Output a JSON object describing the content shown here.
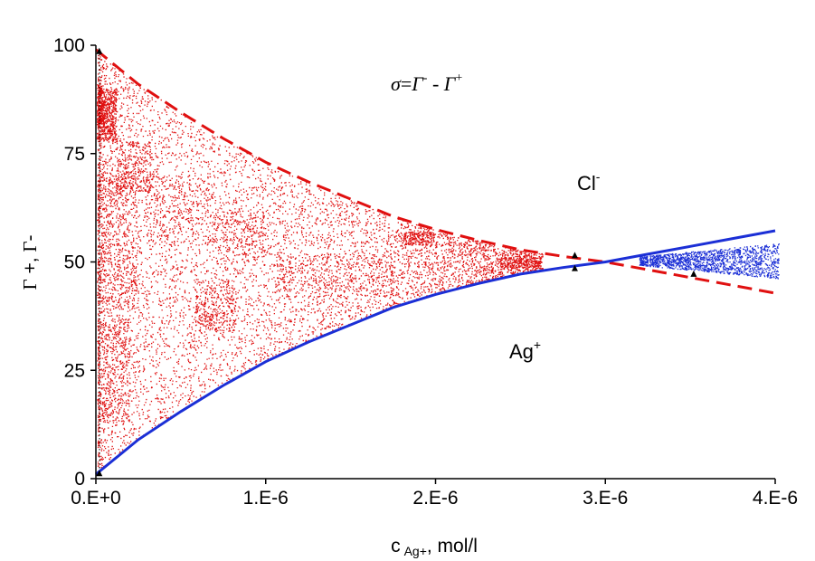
{
  "chart_data": {
    "type": "scatter",
    "title": "",
    "xlabel_main": "c",
    "xlabel_sub": "Ag+",
    "xlabel_tail": ", mol/l",
    "ylabel_parts": [
      "Γ",
      " +, ",
      "Γ",
      "-"
    ],
    "xlim": [
      0,
      4e-06
    ],
    "ylim": [
      0,
      100
    ],
    "x_ticks": [
      {
        "value": 0,
        "label": "0.E+0"
      },
      {
        "value": 1e-06,
        "label": "1.E-6"
      },
      {
        "value": 2e-06,
        "label": "2.E-6"
      },
      {
        "value": 3e-06,
        "label": "3.E-6"
      },
      {
        "value": 4e-06,
        "label": "4.E-6"
      }
    ],
    "y_ticks": [
      {
        "value": 0,
        "label": "0"
      },
      {
        "value": 25,
        "label": "25"
      },
      {
        "value": 50,
        "label": "50"
      },
      {
        "value": 75,
        "label": "75"
      },
      {
        "value": 100,
        "label": "100"
      }
    ],
    "grid": false,
    "colors": {
      "cl": "#e01010",
      "ag": "#1b2fd6",
      "axis": "#000000"
    },
    "series": [
      {
        "name": "Cl-",
        "style": "dashed",
        "color": "#e01010",
        "x": [
          0,
          2.5e-07,
          5e-07,
          7.5e-07,
          1e-06,
          1.25e-06,
          1.5e-06,
          1.75e-06,
          2e-06,
          2.25e-06,
          2.5e-06,
          2.75e-06,
          3e-06,
          3.25e-06,
          3.5e-06,
          3.75e-06,
          4e-06
        ],
        "y": [
          99,
          91,
          84.5,
          78.5,
          73,
          68.5,
          64.5,
          60.5,
          57.5,
          55,
          52.8,
          51.3,
          50,
          48.2,
          46.4,
          44.6,
          42.8
        ]
      },
      {
        "name": "Ag+",
        "style": "solid",
        "color": "#1b2fd6",
        "x": [
          0,
          2.5e-07,
          5e-07,
          7.5e-07,
          1e-06,
          1.25e-06,
          1.5e-06,
          1.75e-06,
          2e-06,
          2.25e-06,
          2.5e-06,
          2.75e-06,
          3e-06,
          3.25e-06,
          3.5e-06,
          3.75e-06,
          4e-06
        ],
        "y": [
          1,
          9,
          15.5,
          21.5,
          27,
          31.5,
          35.5,
          39.5,
          42.5,
          45,
          47.2,
          48.7,
          50,
          51.8,
          53.6,
          55.4,
          57.2
        ]
      }
    ],
    "markers": [
      {
        "x": 2e-08,
        "y": 98.6
      },
      {
        "x": 2e-08,
        "y": 1.2
      },
      {
        "x": 2.82e-06,
        "y": 51.5
      },
      {
        "x": 2.82e-06,
        "y": 48.5
      },
      {
        "x": 3.52e-06,
        "y": 47.2
      }
    ],
    "annotations": {
      "sigma": {
        "sigma": "σ",
        "eq": "=",
        "g1": "Γ",
        "sup1": "-",
        "dash": " - ",
        "g2": "Γ",
        "sup2": "+"
      },
      "cl": {
        "base": "Cl",
        "sup": "-"
      },
      "ag": {
        "base": "Ag",
        "sup": "+"
      }
    }
  }
}
